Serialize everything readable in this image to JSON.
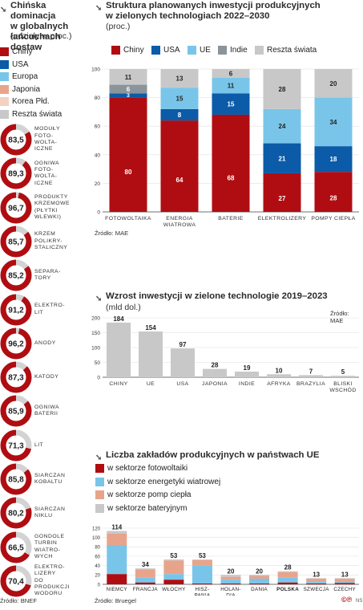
{
  "panel1": {
    "title_line1": "Chińska dominacja",
    "title_line2": "w globalnych",
    "title_line3": "łańcuchach dostaw",
    "subtitle": "(udziały w proc.)",
    "legend": [
      {
        "label": "Chiny",
        "color": "#b00d12"
      },
      {
        "label": "USA",
        "color": "#0b5ba8"
      },
      {
        "label": "Europa",
        "color": "#79c5ea"
      },
      {
        "label": "Japonia",
        "color": "#e8a48b"
      },
      {
        "label": "Korea Płd.",
        "color": "#f3d1c3"
      },
      {
        "label": "Reszta świata",
        "color": "#c8c8c8"
      }
    ],
    "source": "Źródło: BNEF",
    "chart_data": {
      "type": "pie",
      "title": "Chińska dominacja w globalnych łańcuchach dostaw",
      "unit": "proc.",
      "items": [
        {
          "value": 83.5,
          "value_label": "83,5",
          "label": [
            "Moduły",
            "foto-",
            "wolta-",
            "iczne"
          ]
        },
        {
          "value": 89.3,
          "value_label": "89,3",
          "label": [
            "Ogniwa",
            "foto-",
            "wolta-",
            "iczne"
          ]
        },
        {
          "value": 96.7,
          "value_label": "96,7",
          "label": [
            "Produkty",
            "krzemowe",
            "(płytki",
            "wlewki)"
          ]
        },
        {
          "value": 85.7,
          "value_label": "85,7",
          "label": [
            "Krzem",
            "polikry-",
            "staliczny"
          ]
        },
        {
          "value": 85.2,
          "value_label": "85,2",
          "label": [
            "Separa-",
            "tory"
          ]
        },
        {
          "value": 91.2,
          "value_label": "91,2",
          "label": [
            "Elektro-",
            "lit"
          ]
        },
        {
          "value": 96.2,
          "value_label": "96,2",
          "label": [
            "Anody"
          ]
        },
        {
          "value": 87.3,
          "value_label": "87,3",
          "label": [
            "Katody"
          ]
        },
        {
          "value": 85.9,
          "value_label": "85,9",
          "label": [
            "Ogniwa",
            "baterii"
          ]
        },
        {
          "value": 71.3,
          "value_label": "71,3",
          "label": [
            "Lit"
          ]
        },
        {
          "value": 85.8,
          "value_label": "85,8",
          "label": [
            "Siarczan",
            "kobaltu"
          ]
        },
        {
          "value": 80.2,
          "value_label": "80,2",
          "label": [
            "Siarczan",
            "niklu"
          ]
        },
        {
          "value": 66.5,
          "value_label": "66,5",
          "label": [
            "Gondole",
            "turbin",
            "wiatro-",
            "wych"
          ]
        },
        {
          "value": 70.4,
          "value_label": "70,4",
          "label": [
            "Elektro-",
            "lizery",
            "do",
            "produkcji",
            "wodoru"
          ]
        }
      ]
    }
  },
  "panel2": {
    "title": "Struktura planowanych inwestycji produkcyjnych",
    "title_line2": "w zielonych technologiach 2022–2030",
    "subtitle": "(proc.)",
    "source": "Źródło: MAE",
    "chart_data": {
      "type": "bar",
      "stacked": true,
      "categories": [
        "Fotowoltaika",
        "Energia\nwiatrowa",
        "Baterie",
        "Elektrolizery",
        "Pompy ciepła"
      ],
      "ylim": [
        0,
        100
      ],
      "yticks": [
        0,
        20,
        40,
        60,
        80,
        100
      ],
      "series": [
        {
          "name": "Chiny",
          "color": "#b00d12",
          "values": [
            80,
            64,
            68,
            27,
            28
          ],
          "labels": [
            "80",
            "64",
            "68",
            "27",
            "28"
          ]
        },
        {
          "name": "USA",
          "color": "#0b5ba8",
          "values": [
            3,
            8,
            15,
            21,
            18
          ],
          "labels": [
            "3",
            "8",
            "15",
            "21",
            "18"
          ]
        },
        {
          "name": "UE",
          "color": "#79c5ea",
          "values": [
            0,
            15,
            11,
            24,
            34
          ],
          "labels": [
            "",
            "15",
            "11",
            "24",
            "34"
          ]
        },
        {
          "name": "Indie",
          "color": "#8a949b",
          "values": [
            6,
            0,
            0,
            0,
            0
          ],
          "labels": [
            "6",
            "",
            "",
            "",
            ""
          ]
        },
        {
          "name": "Reszta świata",
          "color": "#c8c8c8",
          "values": [
            11,
            13,
            6,
            28,
            20
          ],
          "labels": [
            "11",
            "13",
            "6",
            "28",
            "20"
          ]
        }
      ]
    }
  },
  "panel3": {
    "title": "Wzrost inwestycji w zielone technologie 2019–2023",
    "subtitle": "(mld dol.)",
    "source": "Źródło: MAE",
    "chart_data": {
      "type": "bar",
      "categories": [
        "Chiny",
        "UE",
        "USA",
        "Japonia",
        "Indie",
        "Afryka",
        "Brazylia",
        "Bliski\nWschód"
      ],
      "values": [
        184,
        154,
        97,
        28,
        19,
        10,
        7,
        5
      ],
      "ylim": [
        0,
        200
      ],
      "yticks": [
        0,
        50,
        100,
        150,
        200
      ],
      "color": "#c8c8c8"
    }
  },
  "panel4": {
    "title": "Liczba zakładów produkcyjnych w państwach UE",
    "source": "Źródło: Bruegel",
    "chart_data": {
      "type": "bar",
      "stacked": true,
      "categories": [
        "Niemcy",
        "Francja",
        "Włochy",
        "Hisz-\npania",
        "Holan-\ndia",
        "Dania",
        "Polska",
        "Szwecja",
        "Czechy"
      ],
      "highlight": "Polska",
      "totals": [
        114,
        34,
        53,
        53,
        20,
        20,
        28,
        13,
        13
      ],
      "ylim": [
        0,
        120
      ],
      "yticks": [
        0,
        20,
        40,
        60,
        80,
        100,
        120
      ],
      "series": [
        {
          "name": "w sektorze fotowoltaiki",
          "color": "#b00d12",
          "values": [
            22,
            4,
            10,
            2,
            2,
            2,
            4,
            2,
            3
          ]
        },
        {
          "name": "w sektorze energetyki wiatrowej",
          "color": "#79c5ea",
          "values": [
            62,
            10,
            12,
            38,
            8,
            10,
            10,
            3,
            2
          ]
        },
        {
          "name": "w sektorze pomp ciepła",
          "color": "#e8a48b",
          "values": [
            24,
            18,
            29,
            12,
            6,
            6,
            12,
            7,
            7
          ]
        },
        {
          "name": "w sektorze bateryjnym",
          "color": "#c8c8c8",
          "values": [
            6,
            2,
            2,
            1,
            4,
            2,
            2,
            1,
            1
          ]
        }
      ]
    }
  },
  "footer": {
    "logo": "©℗",
    "initials": "NS"
  }
}
